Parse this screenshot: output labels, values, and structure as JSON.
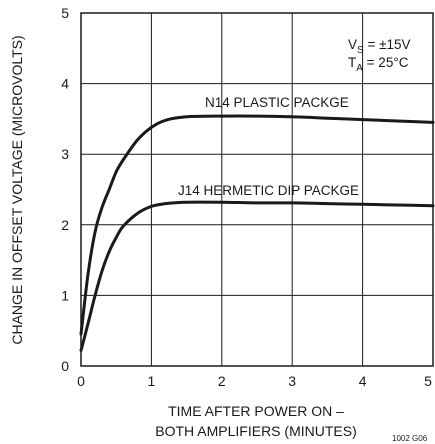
{
  "chart_data": {
    "type": "line",
    "xlabel_line1": "TIME AFTER POWER ON –",
    "xlabel_line2": "BOTH AMPLIFIERS (MINUTES)",
    "ylabel": "CHANGE IN OFFSET VOLTAGE (MICROVOLTS)",
    "xlim": [
      0,
      5
    ],
    "ylim": [
      0,
      5
    ],
    "xticks": [
      "0",
      "1",
      "2",
      "3",
      "4",
      "5"
    ],
    "yticks": [
      "0",
      "1",
      "2",
      "3",
      "4",
      "5"
    ],
    "grid": true,
    "conditions": {
      "vs_prefix": "V",
      "vs_sub": "S",
      "vs_value": " = ±15V",
      "ta_prefix": "T",
      "ta_sub": "A",
      "ta_value": " = 25°C"
    },
    "figure_code": "1002 G06",
    "series": [
      {
        "name": "N14 PLASTIC PACKGE",
        "x": [
          0,
          0.1,
          0.2,
          0.3,
          0.4,
          0.5,
          0.6,
          0.8,
          1.0,
          1.2,
          1.5,
          2.0,
          2.5,
          3.0,
          3.5,
          4.0,
          4.5,
          5.0
        ],
        "y": [
          0.45,
          1.3,
          1.9,
          2.25,
          2.5,
          2.75,
          2.92,
          3.2,
          3.38,
          3.48,
          3.53,
          3.54,
          3.54,
          3.53,
          3.51,
          3.49,
          3.47,
          3.45
        ]
      },
      {
        "name": "J14 HERMETIC DIP PACKGE",
        "x": [
          0,
          0.1,
          0.2,
          0.3,
          0.4,
          0.5,
          0.6,
          0.8,
          1.0,
          1.2,
          1.5,
          2.0,
          2.5,
          3.0,
          3.5,
          4.0,
          4.5,
          5.0
        ],
        "y": [
          0.22,
          0.6,
          1.0,
          1.35,
          1.62,
          1.82,
          1.98,
          2.16,
          2.26,
          2.3,
          2.32,
          2.32,
          2.31,
          2.31,
          2.3,
          2.29,
          2.28,
          2.27
        ]
      }
    ]
  }
}
